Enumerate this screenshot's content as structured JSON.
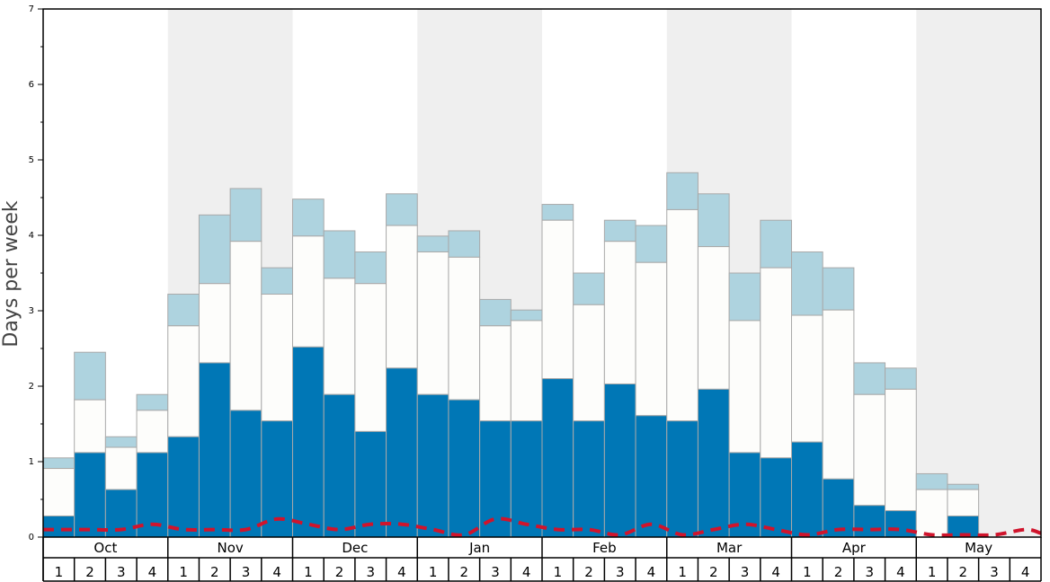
{
  "chart_data": {
    "type": "bar",
    "ylabel": "Days per week",
    "ylim": [
      0,
      7
    ],
    "yticks": [
      "0",
      "1",
      "2",
      "3",
      "4",
      "5",
      "6",
      "7"
    ],
    "months": [
      "Oct",
      "Nov",
      "Dec",
      "Jan",
      "Feb",
      "Mar",
      "Apr",
      "May"
    ],
    "week_labels": [
      "1",
      "2",
      "3",
      "4"
    ],
    "colors": {
      "dark": "#0077b6",
      "middle": "#fdfdfb",
      "light": "#aed3df",
      "bar_outline": "#a9a9a9",
      "band": "#efefef",
      "dashed_line": "#d0142c"
    },
    "series": [
      {
        "name": "dark",
        "values": [
          0.28,
          1.12,
          0.63,
          1.12,
          1.33,
          2.31,
          1.68,
          1.54,
          2.52,
          1.89,
          1.4,
          2.24,
          1.89,
          1.82,
          1.54,
          1.54,
          2.1,
          1.54,
          2.03,
          1.61,
          1.54,
          1.96,
          1.12,
          1.05,
          1.26,
          0.77,
          0.42,
          0.35,
          0.0,
          0.28,
          0.0,
          0.0
        ]
      },
      {
        "name": "middle_top",
        "values": [
          0.91,
          1.82,
          1.19,
          1.68,
          2.8,
          3.36,
          3.92,
          3.22,
          3.99,
          3.43,
          3.36,
          4.13,
          3.78,
          3.71,
          2.8,
          2.87,
          4.2,
          3.08,
          3.92,
          3.64,
          4.34,
          3.85,
          2.87,
          3.57,
          2.94,
          3.01,
          1.89,
          1.96,
          0.63,
          0.63,
          0.0,
          0.0
        ]
      },
      {
        "name": "light_top",
        "values": [
          1.05,
          2.45,
          1.33,
          1.89,
          3.22,
          4.27,
          4.62,
          3.57,
          4.48,
          4.06,
          3.78,
          4.55,
          3.99,
          4.06,
          3.15,
          3.01,
          4.41,
          3.5,
          4.2,
          4.13,
          4.83,
          4.55,
          3.5,
          4.2,
          3.78,
          3.57,
          2.31,
          2.24,
          0.84,
          0.7,
          0.0,
          0.0
        ]
      },
      {
        "name": "dashed",
        "values": [
          0.1,
          0.1,
          0.1,
          0.17,
          0.1,
          0.1,
          0.1,
          0.24,
          0.17,
          0.1,
          0.17,
          0.17,
          0.1,
          0.03,
          0.24,
          0.17,
          0.1,
          0.1,
          0.03,
          0.17,
          0.03,
          0.1,
          0.17,
          0.1,
          0.03,
          0.1,
          0.1,
          0.1,
          0.03,
          0.03,
          0.03,
          0.1
        ]
      }
    ]
  }
}
